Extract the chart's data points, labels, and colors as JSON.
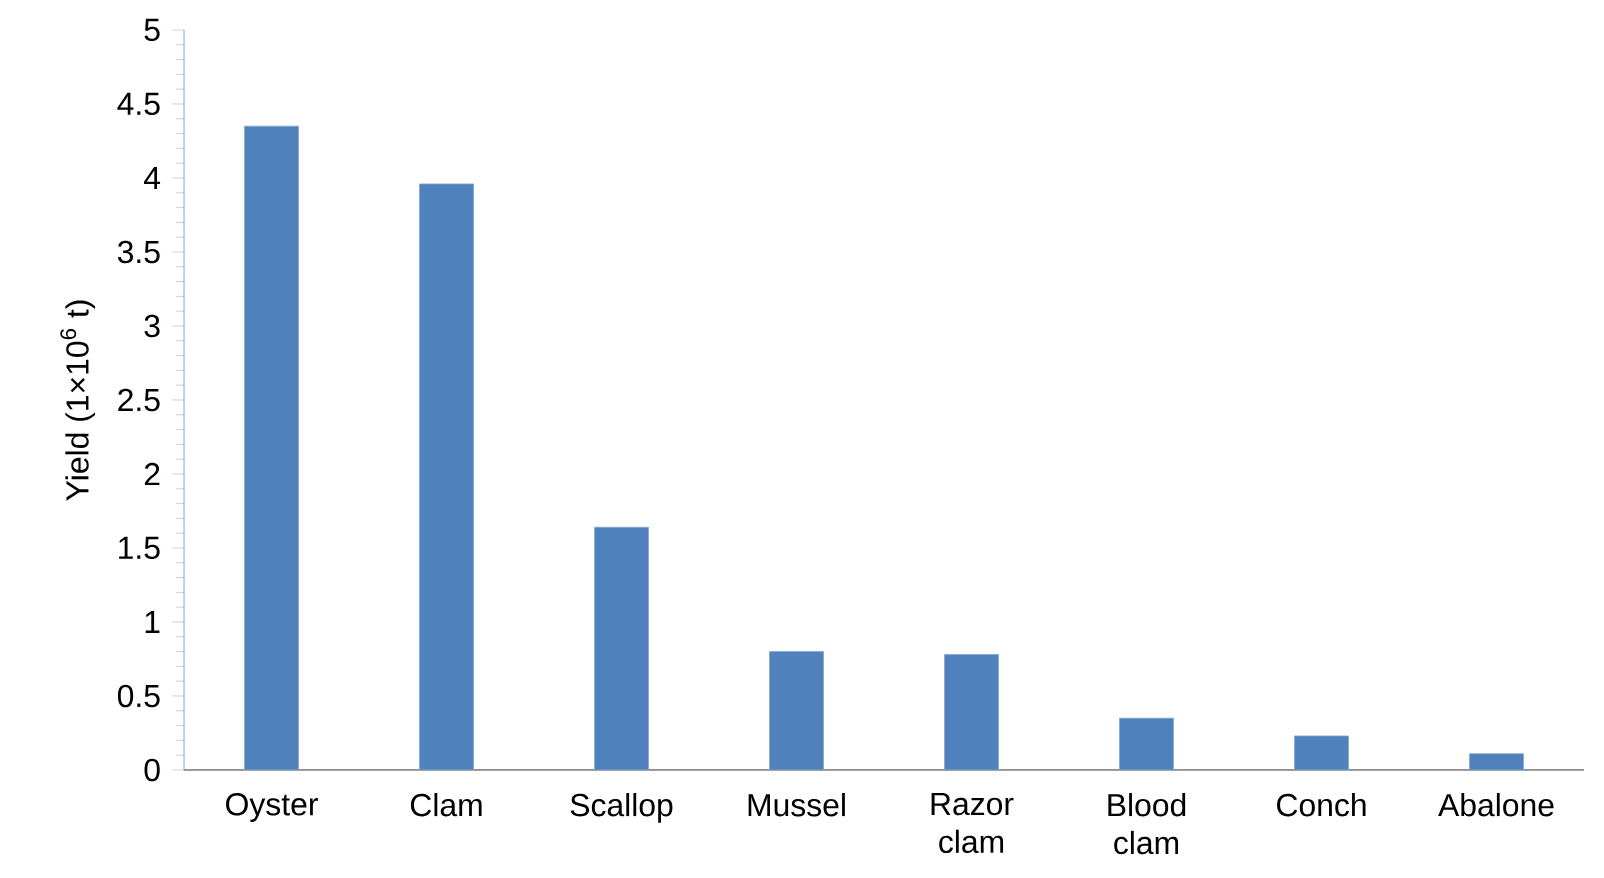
{
  "chart_data": {
    "type": "bar",
    "ylabel": "Yield (1×10$^{6}$ t)",
    "categories": [
      "Oyster",
      "Clam",
      "Scallop",
      "Mussel",
      "Razor clam",
      "Blood clam",
      "Conch",
      "Abalone"
    ],
    "values": [
      4.35,
      3.96,
      1.64,
      0.8,
      0.78,
      0.35,
      0.23,
      0.11
    ],
    "color": "#4f81bd",
    "ylim": [
      0,
      5
    ],
    "yticks": [
      0,
      0.5,
      1,
      1.5,
      2,
      2.5,
      3,
      3.5,
      4,
      4.5,
      5
    ],
    "grid": false
  }
}
